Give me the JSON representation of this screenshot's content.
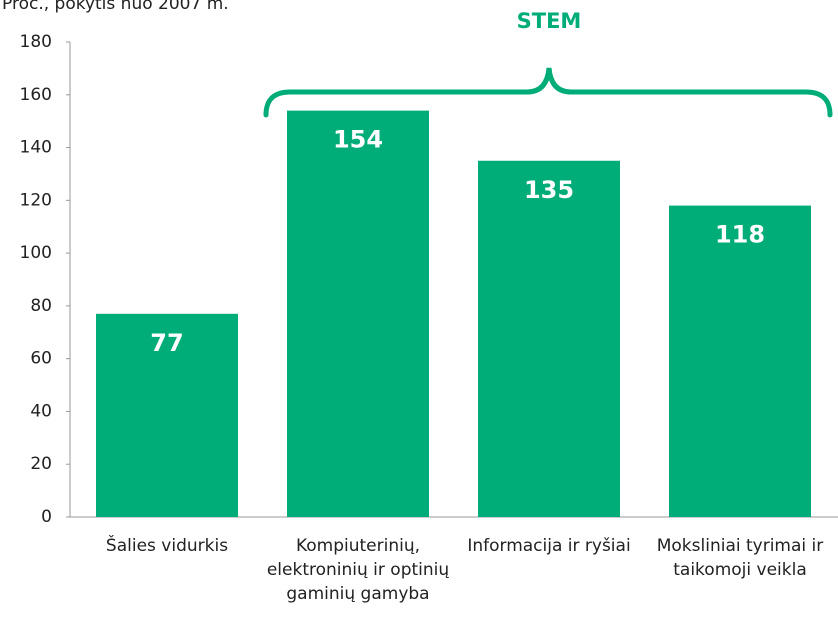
{
  "chart_data": {
    "type": "bar",
    "subtitle": "Proc., pokytis nuo 2007 m.",
    "annotation": "STEM",
    "categories": [
      "Šalies vidurkis",
      "Kompiuterinių, elektroninių ir optinių gaminių gamyba",
      "Informacija ir ryšiai",
      "Moksliniai tyrimai ir taikomoji veikla"
    ],
    "values": [
      77,
      154,
      135,
      118
    ],
    "color": "#00ac78",
    "ylim": [
      0,
      180
    ],
    "yticks": [
      0,
      20,
      40,
      60,
      80,
      100,
      120,
      140,
      160,
      180
    ],
    "grid": false
  }
}
